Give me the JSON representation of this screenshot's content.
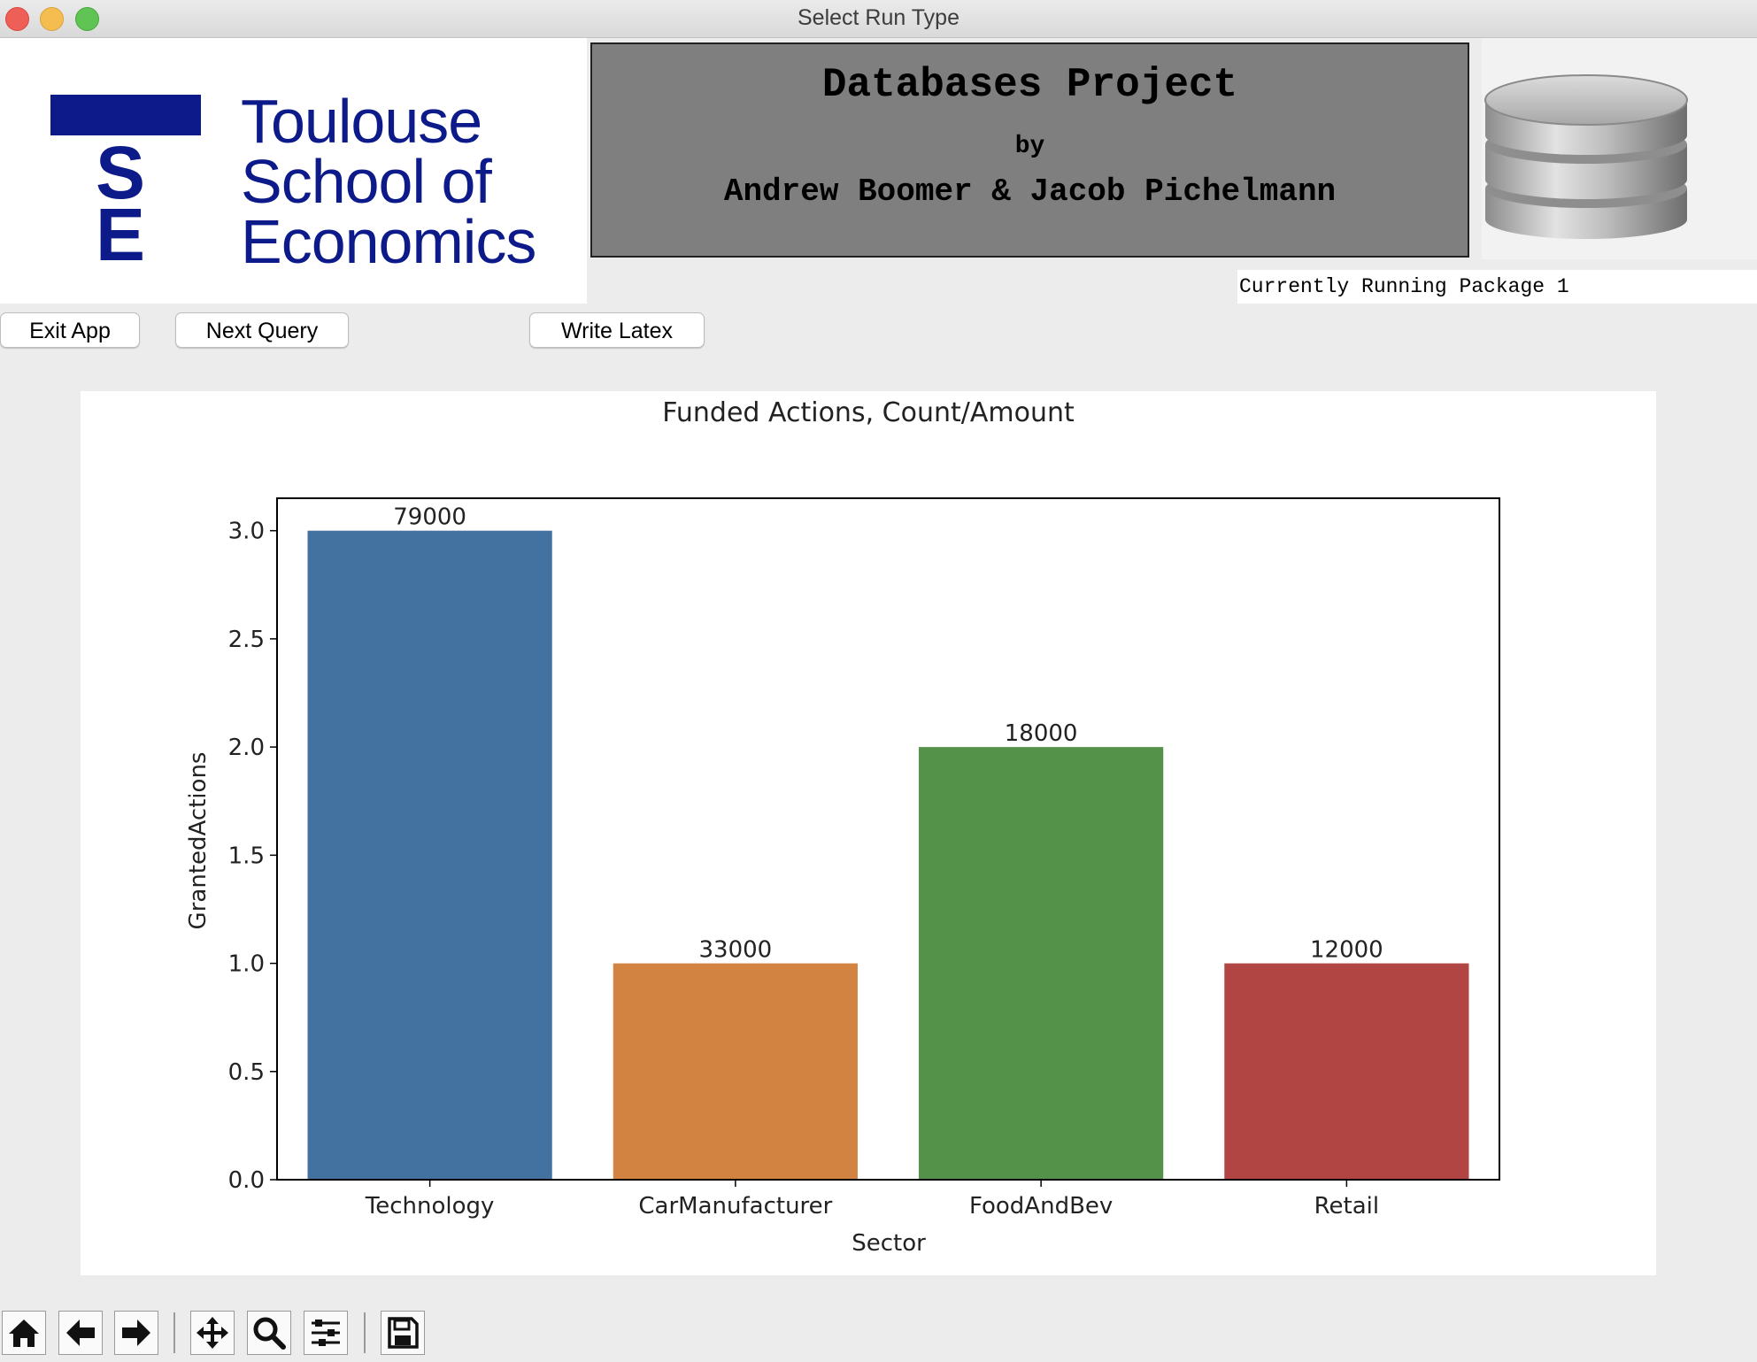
{
  "window": {
    "title": "Select Run Type"
  },
  "logo": {
    "letters": [
      "T",
      "S",
      "E"
    ],
    "lines": [
      "Toulouse",
      "School of",
      "Economics"
    ]
  },
  "project": {
    "title": "Databases Project",
    "by": "by",
    "authors": "Andrew Boomer & Jacob Pichelmann"
  },
  "status": {
    "text": "Currently Running Package 1"
  },
  "buttons": {
    "exit": "Exit App",
    "next": "Next Query",
    "latex": "Write Latex"
  },
  "toolbar": {
    "icons": [
      "home-icon",
      "back-arrow-icon",
      "forward-arrow-icon",
      "pan-icon",
      "zoom-icon",
      "configure-subplots-icon",
      "save-icon"
    ]
  },
  "colors": {
    "brand_navy": "#0c1a8a",
    "project_panel": "#7f7f7f"
  },
  "chart_data": {
    "type": "bar",
    "title": "Funded Actions, Count/Amount",
    "xlabel": "Sector",
    "ylabel": "GrantedActions",
    "categories": [
      "Technology",
      "CarManufacturer",
      "FoodAndBev",
      "Retail"
    ],
    "values": [
      3.0,
      1.0,
      2.0,
      1.0
    ],
    "bar_labels": [
      "79000",
      "33000",
      "18000",
      "12000"
    ],
    "colors": [
      "#4472a0",
      "#d38341",
      "#54924a",
      "#b04544"
    ],
    "ylim": [
      0,
      3.15
    ],
    "yticks": [
      "0.0",
      "0.5",
      "1.0",
      "1.5",
      "2.0",
      "2.5",
      "3.0"
    ],
    "grid": false
  }
}
